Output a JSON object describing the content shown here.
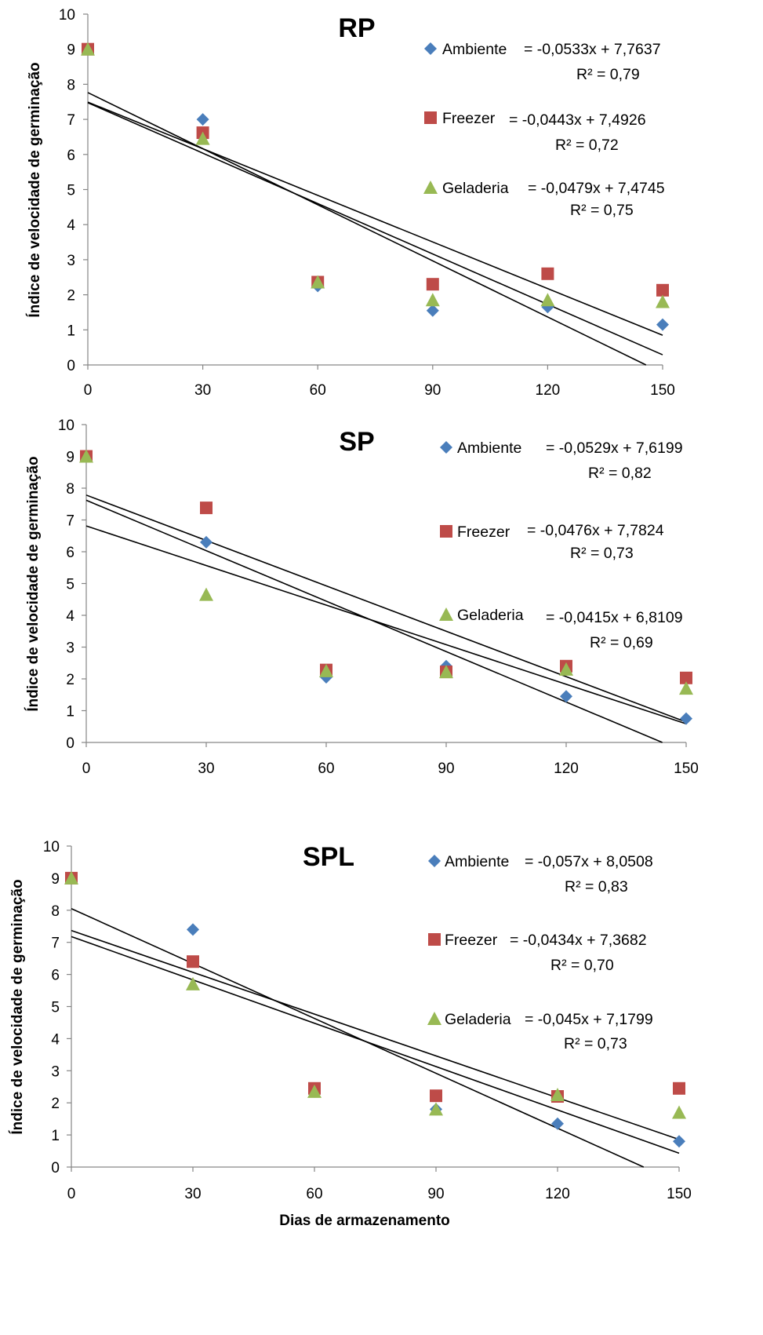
{
  "chart_data": [
    {
      "type": "scatter",
      "title": "RP",
      "xlabel": "",
      "ylabel": "Índice de velocidade de germinação",
      "xlim": [
        0,
        150
      ],
      "ylim": [
        0,
        10
      ],
      "x_ticks": [
        "0",
        "30",
        "60",
        "90",
        "120",
        "150"
      ],
      "y_ticks": [
        "0",
        "1",
        "2",
        "3",
        "4",
        "5",
        "6",
        "7",
        "8",
        "9",
        "10"
      ],
      "x": [
        0,
        30,
        60,
        90,
        120,
        150
      ],
      "series": [
        {
          "name": "Ambiente",
          "marker": "diamond",
          "color": "#4a7ebb",
          "values": [
            9.0,
            7.0,
            2.25,
            1.55,
            1.65,
            1.15
          ],
          "equation": "= -0,0533x + 7,7637",
          "r2": "R² = 0,79",
          "trend": {
            "slope": -0.0533,
            "intercept": 7.7637
          }
        },
        {
          "name": "Freezer",
          "marker": "square",
          "color": "#be4b48",
          "values": [
            9.0,
            6.62,
            2.36,
            2.3,
            2.6,
            2.13
          ],
          "equation": "= -0,0443x + 7,4926",
          "r2": "R² = 0,72",
          "trend": {
            "slope": -0.0443,
            "intercept": 7.4926
          }
        },
        {
          "name": "Geladeria",
          "marker": "triangle",
          "color": "#98b954",
          "values": [
            9.0,
            6.45,
            2.36,
            1.85,
            1.85,
            1.8
          ],
          "equation": "= -0,0479x + 7,4745",
          "r2": "R² = 0,75",
          "trend": {
            "slope": -0.0479,
            "intercept": 7.4745
          }
        }
      ]
    },
    {
      "type": "scatter",
      "title": "SP",
      "xlabel": "",
      "ylabel": "Índice de velocidade de germinação",
      "xlim": [
        0,
        150
      ],
      "ylim": [
        0,
        10
      ],
      "x_ticks": [
        "0",
        "30",
        "60",
        "90",
        "120",
        "150"
      ],
      "y_ticks": [
        "0",
        "1",
        "2",
        "3",
        "4",
        "5",
        "6",
        "7",
        "8",
        "9",
        "10"
      ],
      "x": [
        0,
        30,
        60,
        90,
        120,
        150
      ],
      "series": [
        {
          "name": "Ambiente",
          "marker": "diamond",
          "color": "#4a7ebb",
          "values": [
            9.0,
            6.3,
            2.05,
            2.4,
            1.45,
            0.75
          ],
          "equation": "= -0,0529x + 7,6199",
          "r2": "R² = 0,82",
          "trend": {
            "slope": -0.0529,
            "intercept": 7.6199
          }
        },
        {
          "name": "Freezer",
          "marker": "square",
          "color": "#be4b48",
          "values": [
            9.0,
            7.38,
            2.28,
            2.22,
            2.4,
            2.03
          ],
          "equation": "= -0,0476x + 7,7824",
          "r2": "R² = 0,73",
          "trend": {
            "slope": -0.0476,
            "intercept": 7.7824
          }
        },
        {
          "name": "Geladeria",
          "marker": "triangle",
          "color": "#98b954",
          "values": [
            9.0,
            4.65,
            2.25,
            2.22,
            2.3,
            1.7
          ],
          "equation": "= -0,0415x + 6,8109",
          "r2": "R² = 0,69",
          "trend": {
            "slope": -0.0415,
            "intercept": 6.8109
          }
        }
      ]
    },
    {
      "type": "scatter",
      "title": "SPL",
      "xlabel": "Dias de armazenamento",
      "ylabel": "Índice de velocidade de germinação",
      "xlim": [
        0,
        150
      ],
      "ylim": [
        0,
        10
      ],
      "x_ticks": [
        "0",
        "30",
        "60",
        "90",
        "120",
        "150"
      ],
      "y_ticks": [
        "0",
        "1",
        "2",
        "3",
        "4",
        "5",
        "6",
        "7",
        "8",
        "9",
        "10"
      ],
      "x": [
        0,
        30,
        60,
        90,
        120,
        150
      ],
      "series": [
        {
          "name": "Ambiente",
          "marker": "diamond",
          "color": "#4a7ebb",
          "values": [
            9.0,
            7.4,
            2.35,
            1.8,
            1.35,
            0.8
          ],
          "equation": "= -0,057x + 8,0508",
          "r2": "R² = 0,83",
          "trend": {
            "slope": -0.057,
            "intercept": 8.0508
          }
        },
        {
          "name": "Freezer",
          "marker": "square",
          "color": "#be4b48",
          "values": [
            9.0,
            6.4,
            2.45,
            2.22,
            2.2,
            2.45
          ],
          "equation": "= -0,0434x + 7,3682",
          "r2": "R² = 0,70",
          "trend": {
            "slope": -0.0434,
            "intercept": 7.3682
          }
        },
        {
          "name": "Geladeria",
          "marker": "triangle",
          "color": "#98b954",
          "values": [
            9.0,
            5.7,
            2.35,
            1.8,
            2.25,
            1.7
          ],
          "equation": "= -0,045x + 7,1799",
          "r2": "R² = 0,73",
          "trend": {
            "slope": -0.045,
            "intercept": 7.1799
          }
        }
      ]
    }
  ]
}
